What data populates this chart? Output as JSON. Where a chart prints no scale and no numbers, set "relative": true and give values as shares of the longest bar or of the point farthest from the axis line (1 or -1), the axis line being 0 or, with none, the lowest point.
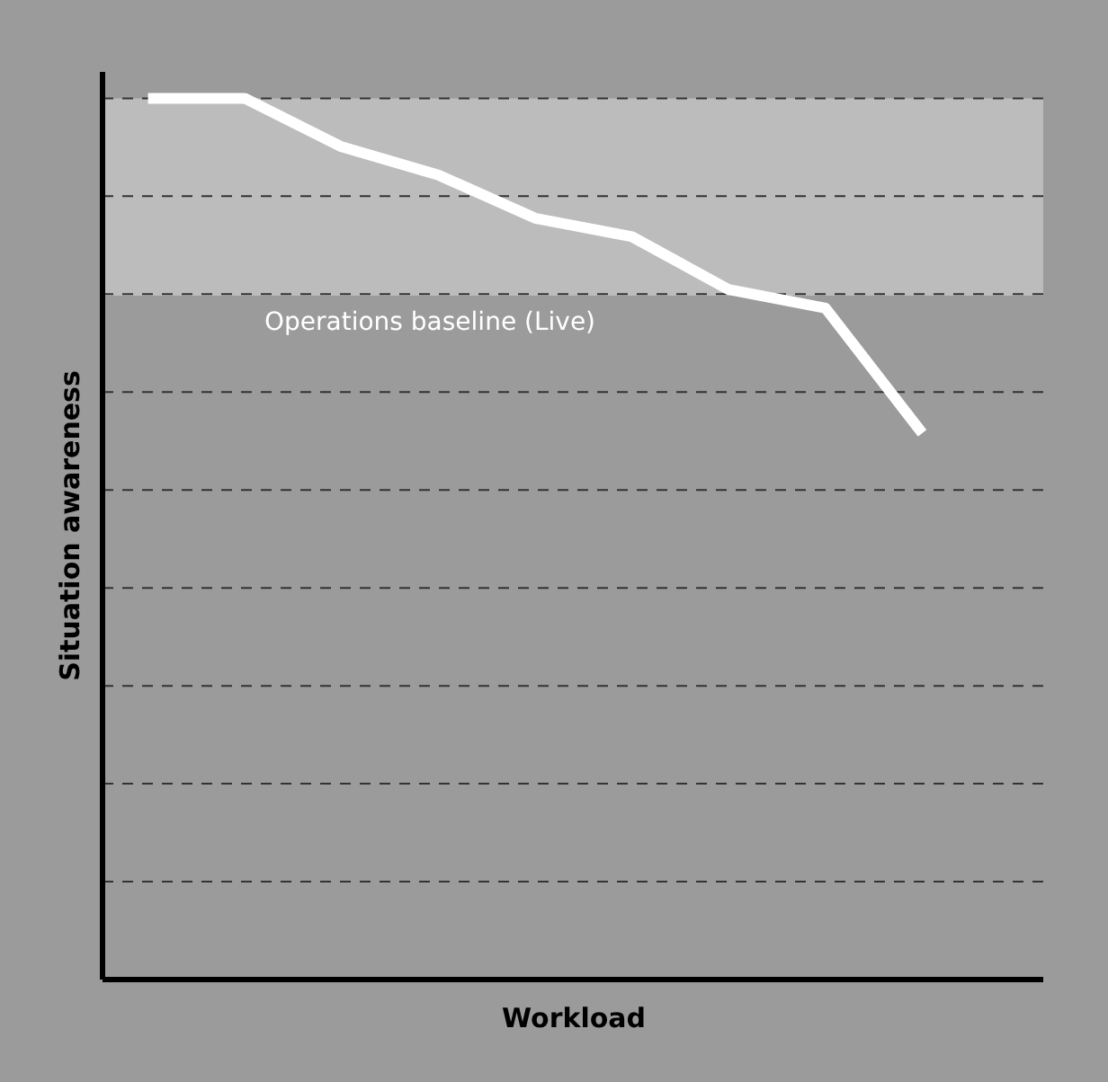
{
  "chart_data": {
    "type": "line",
    "relative": true,
    "xlabel": "Workload",
    "ylabel": "Situation awareness",
    "categories": [
      null,
      null,
      null,
      null,
      null,
      null,
      null,
      null,
      null
    ],
    "series": [
      {
        "color": "#ffffff",
        "values": [
          1,
          1,
          0.945,
          0.913,
          0.864,
          0.843,
          0.783,
          0.762,
          0.62
        ]
      }
    ],
    "bands": [
      {
        "axis": "y",
        "from": 0.776,
        "to": 1,
        "label": "Operations baseline (Live)",
        "color": "#bcbcbc"
      }
    ],
    "grid": "y",
    "marker": "none",
    "line_style": "solid"
  }
}
